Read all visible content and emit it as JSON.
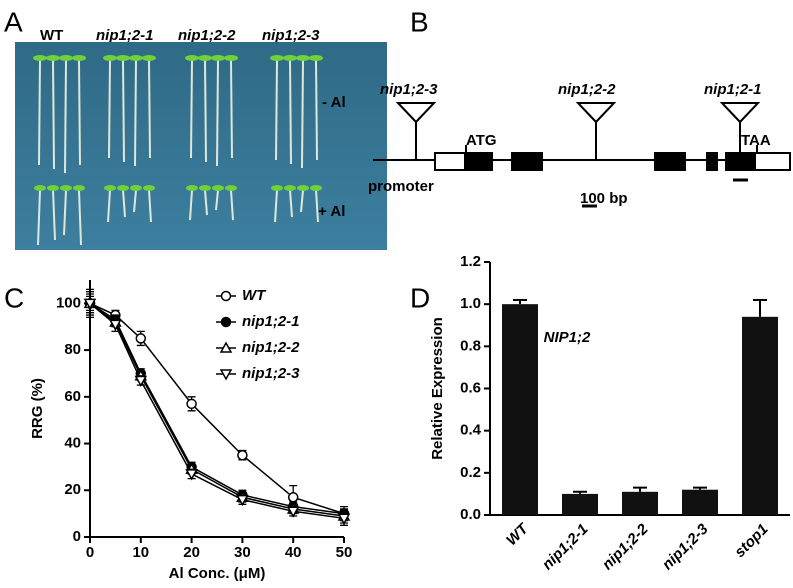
{
  "panel_a": {
    "letter": "A",
    "columns": [
      "WT",
      "nip1;2-1",
      "nip1;2-2",
      "nip1;2-3"
    ],
    "rows": [
      "- Al",
      "+ Al"
    ]
  },
  "panel_b": {
    "letter": "B",
    "insertions": [
      "nip1;2-3",
      "nip1;2-2",
      "nip1;2-1"
    ],
    "start": "ATG",
    "stop": "TAA",
    "promoter": "promoter",
    "scale": "100 bp"
  },
  "chart_data": [
    {
      "type": "line",
      "label": "C",
      "xlabel": "Al Conc. (μM)",
      "ylabel": "RRG (%)",
      "x": [
        0,
        5,
        10,
        20,
        30,
        40,
        50
      ],
      "xlim": [
        0,
        50
      ],
      "xticks": [
        0,
        10,
        20,
        30,
        40,
        50
      ],
      "ylim": [
        0,
        110
      ],
      "yticks": [
        0,
        20,
        40,
        60,
        80,
        100
      ],
      "legend": "upper right",
      "series": [
        {
          "name": "WT",
          "color": "#000000",
          "marker": "open-circle",
          "values": [
            100,
            95,
            85,
            57,
            35,
            17,
            10
          ],
          "errors": [
            3,
            2,
            3,
            3,
            2,
            5,
            2
          ]
        },
        {
          "name": "nip1;2-1",
          "color": "#000000",
          "marker": "filled-circle",
          "values": [
            100,
            93,
            70,
            30,
            18,
            13,
            10
          ],
          "errors": [
            4,
            2,
            2,
            2,
            2,
            2,
            3
          ]
        },
        {
          "name": "nip1;2-2",
          "color": "#000000",
          "marker": "open-triangle",
          "values": [
            100,
            92,
            69,
            29,
            17,
            12,
            9
          ],
          "errors": [
            5,
            2,
            2,
            2,
            2,
            2,
            3
          ]
        },
        {
          "name": "nip1;2-3",
          "color": "#000000",
          "marker": "open-down-triangle",
          "values": [
            100,
            91,
            67,
            27,
            16,
            11,
            8
          ],
          "errors": [
            6,
            3,
            2,
            2,
            2,
            2,
            3
          ]
        }
      ]
    },
    {
      "type": "bar",
      "label": "D",
      "ylabel": "Relative Expression",
      "annotation": "NIP1;2",
      "color": "#111111",
      "categories": [
        "WT",
        "nip1;2-1",
        "nip1;2-2",
        "nip1;2-3",
        "stop1"
      ],
      "values": [
        1.0,
        0.1,
        0.11,
        0.12,
        0.94
      ],
      "errors": [
        0.02,
        0.01,
        0.02,
        0.01,
        0.08
      ],
      "ylim": [
        0,
        1.2
      ],
      "yticks": [
        {
          "value": 0,
          "label": "0.0"
        },
        0.2,
        0.4,
        0.6,
        0.8,
        {
          "value": 1,
          "label": "1.0"
        },
        1.2
      ]
    }
  ]
}
